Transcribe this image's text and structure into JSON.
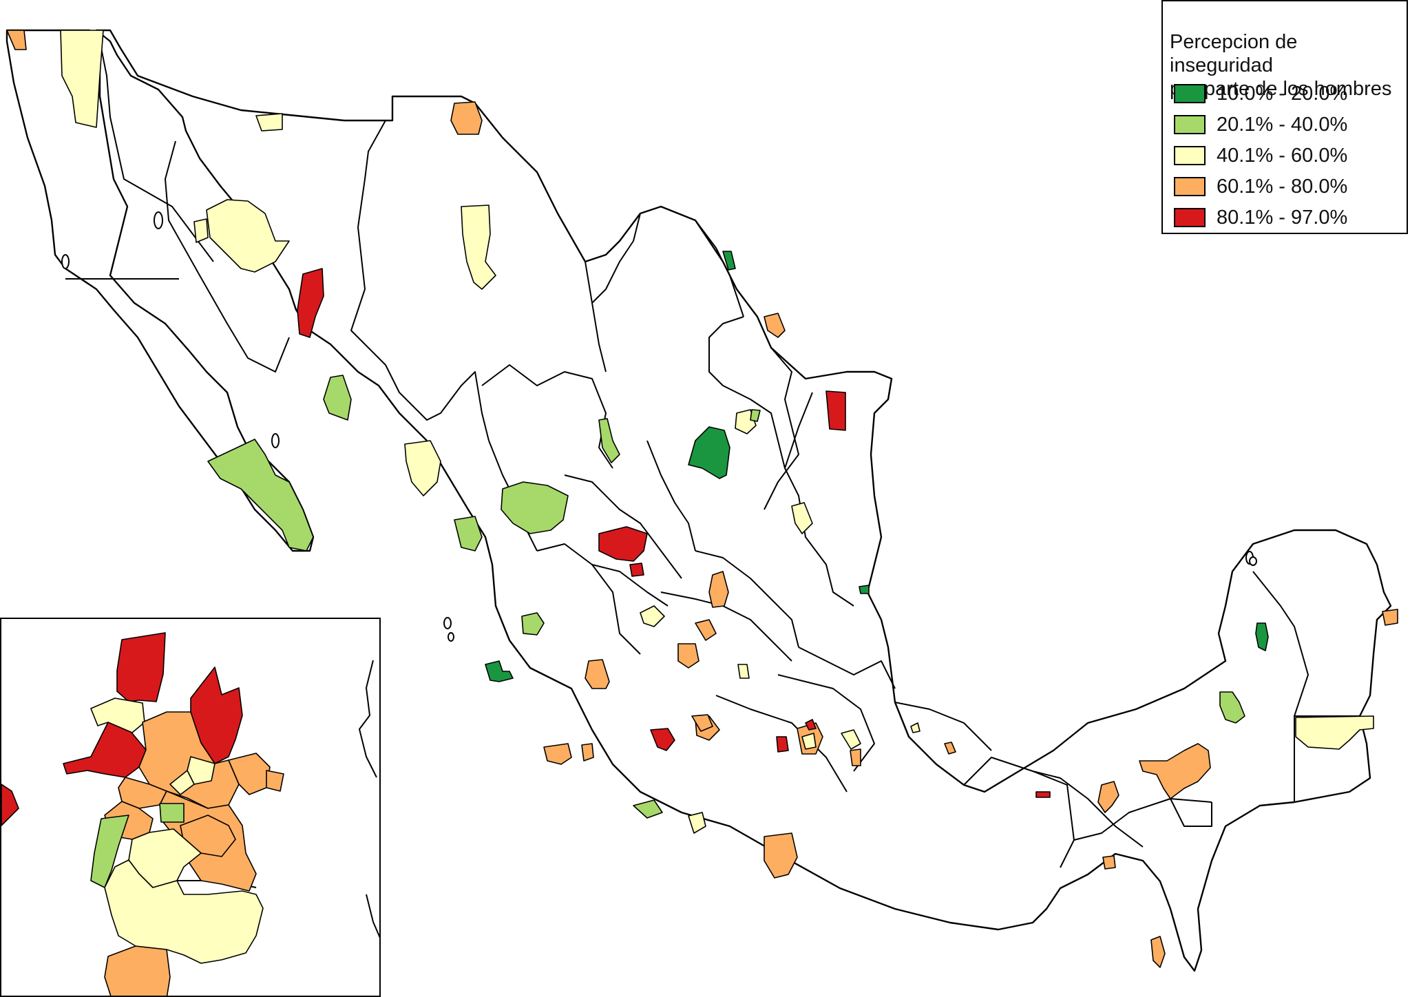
{
  "legend": {
    "title_line1": "Percepcion de inseguridad",
    "title_line2": "por parte de los hombres",
    "classes": [
      {
        "label": "10.0% - 20.0%",
        "color": "#1a9641"
      },
      {
        "label": "20.1% - 40.0%",
        "color": "#a6d96a"
      },
      {
        "label": "40.1% - 60.0%",
        "color": "#ffffc0"
      },
      {
        "label": "60.1% - 80.0%",
        "color": "#fdae61"
      },
      {
        "label": "80.1% - 97.0%",
        "color": "#d7191c"
      }
    ]
  },
  "map": {
    "country": "Mexico",
    "inset": "Zona Metropolitana del Valle de México"
  }
}
